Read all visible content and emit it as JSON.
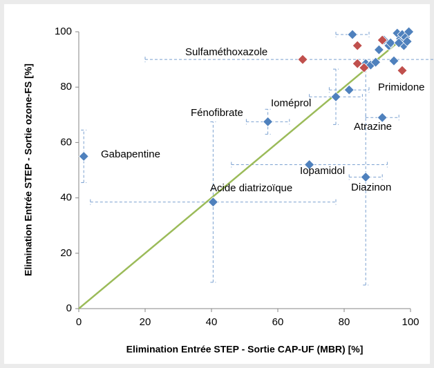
{
  "chart_data": {
    "type": "scatter",
    "xlabel": "Elimination Entrée STEP - Sortie CAP-UF (MBR) [%]",
    "ylabel": "Elimination Entrée STEP - Sortie ozone-FS [%]",
    "xlim": [
      0,
      100
    ],
    "ylim": [
      0,
      100
    ],
    "xticks": [
      0,
      20,
      40,
      60,
      80,
      100
    ],
    "yticks": [
      0,
      20,
      40,
      60,
      80,
      100
    ],
    "grid": false,
    "series": [
      {
        "color": "#4f81bd",
        "x": [
          1.5,
          40.5,
          57,
          69.5,
          86.5,
          91.5,
          77.5,
          81.5,
          82.5,
          86.5,
          88,
          89.5,
          90.5,
          92,
          93.5,
          94,
          95,
          96,
          97,
          97.5,
          98,
          98.5,
          99,
          99.5,
          96.5
        ],
        "values": [
          55,
          38.5,
          67.5,
          52,
          47.5,
          69,
          76.5,
          79,
          99,
          88.5,
          88,
          89,
          93.5,
          97,
          95,
          96,
          89.5,
          99.5,
          97.5,
          99,
          95,
          98,
          96.5,
          100,
          96
        ],
        "xerr": [
          null,
          37,
          6.5,
          23.5,
          5,
          5,
          8,
          6,
          5,
          null,
          null,
          null,
          null,
          null,
          null,
          null,
          null,
          null,
          null,
          null,
          null,
          null,
          null,
          null,
          null
        ],
        "yerr": [
          9.5,
          29,
          4.5,
          null,
          39,
          null,
          10,
          null,
          null,
          null,
          null,
          null,
          null,
          null,
          null,
          null,
          null,
          null,
          null,
          null,
          null,
          null,
          null,
          null,
          null
        ]
      },
      {
        "color": "#c0504d",
        "x": [
          67.5,
          84,
          84,
          91.5,
          97.5,
          86
        ],
        "values": [
          90,
          95,
          88.5,
          97,
          86,
          87
        ],
        "xerr": [
          47.5,
          null,
          null,
          null,
          null,
          null
        ],
        "yerr": [
          null,
          null,
          null,
          null,
          null,
          null
        ]
      }
    ],
    "annotations": [
      "Sulfaméthoxazole",
      "Primidone",
      "Ioméprol",
      "Fénofibrate",
      "Atrazine",
      "Gabapentine",
      "Iopamidol",
      "Acide diatrizoïque",
      "Diazinon"
    ],
    "trendline": true,
    "trendline_color": "#9bbb59"
  }
}
